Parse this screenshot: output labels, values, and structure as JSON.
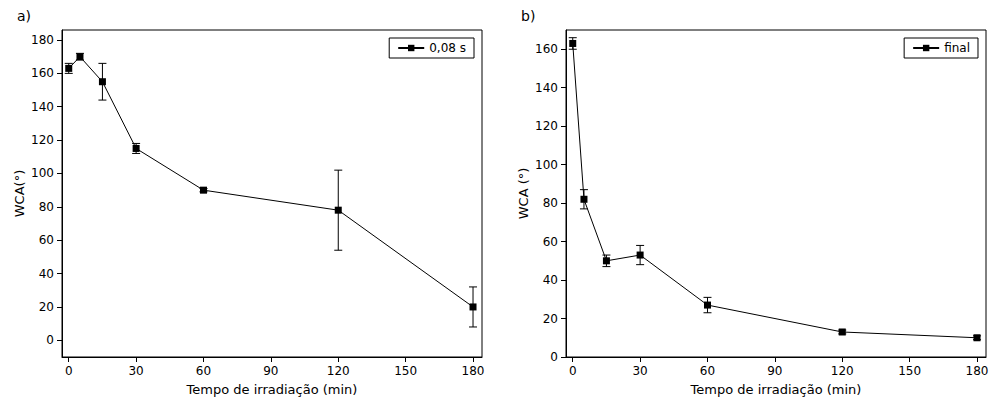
{
  "chart_data": [
    {
      "type": "line",
      "panel": "a)",
      "x": [
        0,
        5,
        15,
        30,
        60,
        120,
        180
      ],
      "series": [
        {
          "name": "0,08 s",
          "color": "#000000",
          "marker": "square",
          "line_style": "solid",
          "values": [
            163,
            170,
            155,
            115,
            90,
            78,
            20
          ],
          "errors": [
            3,
            2,
            11,
            3,
            1,
            24,
            12
          ]
        }
      ],
      "xlabel": "Tempo de irradiação (min)",
      "ylabel": "WCA(°)",
      "xlim": [
        -3,
        184
      ],
      "ylim": [
        -10,
        186
      ],
      "xticks": [
        0,
        30,
        60,
        90,
        120,
        150,
        180
      ],
      "yticks": [
        0,
        20,
        40,
        60,
        80,
        100,
        120,
        140,
        160,
        180
      ],
      "legend": "upper right",
      "grid": false
    },
    {
      "type": "line",
      "panel": "b)",
      "x": [
        0,
        5,
        15,
        30,
        60,
        120,
        180
      ],
      "series": [
        {
          "name": "final",
          "color": "#000000",
          "marker": "square",
          "line_style": "solid",
          "values": [
            163,
            82,
            50,
            53,
            27,
            13,
            10
          ],
          "errors": [
            3,
            5,
            3,
            5,
            4,
            1,
            1
          ]
        }
      ],
      "xlabel": "Tempo de irradiação (min)",
      "ylabel": "WCA (°)",
      "xlim": [
        -3,
        184
      ],
      "ylim": [
        0,
        170
      ],
      "xticks": [
        0,
        30,
        60,
        90,
        120,
        150,
        180
      ],
      "yticks": [
        0,
        20,
        40,
        60,
        80,
        100,
        120,
        140,
        160
      ],
      "legend": "upper right",
      "grid": false
    }
  ]
}
